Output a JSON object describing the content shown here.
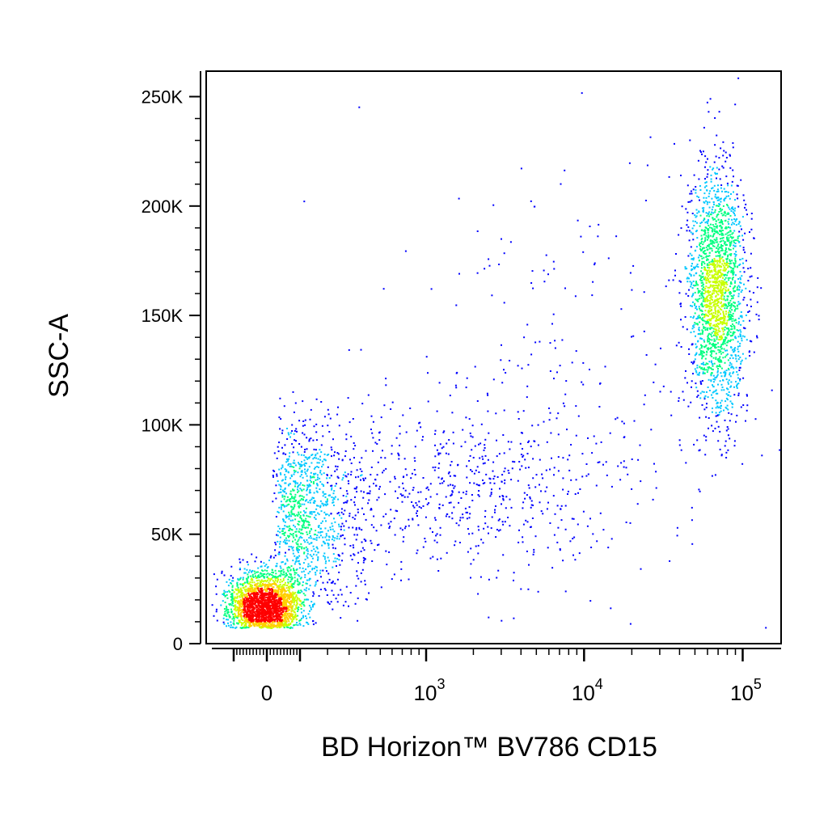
{
  "chart_data": {
    "type": "scatter",
    "style": "pseudocolor-density",
    "title": "",
    "xlabel": "BD Horizon™ BV786 CD15",
    "ylabel": "SSC-A",
    "x_scale": "biexponential",
    "x_ticks": [
      {
        "value": 0,
        "label": "0"
      },
      {
        "value": 1000,
        "label": "10",
        "sup": "3"
      },
      {
        "value": 10000,
        "label": "10",
        "sup": "4"
      },
      {
        "value": 100000,
        "label": "10",
        "sup": "5"
      }
    ],
    "y_ticks": [
      {
        "value": 0,
        "label": "0"
      },
      {
        "value": 50000,
        "label": "50K"
      },
      {
        "value": 100000,
        "label": "100K"
      },
      {
        "value": 150000,
        "label": "150K"
      },
      {
        "value": 200000,
        "label": "200K"
      },
      {
        "value": 250000,
        "label": "250K"
      }
    ],
    "ylim": [
      -5000,
      262144
    ],
    "xlim": [
      -200,
      262144
    ],
    "grid": false,
    "legend": "none",
    "density_colors": [
      "#0000ff",
      "#00c8ff",
      "#00ff80",
      "#c8ff00",
      "#ffd000",
      "#ff0000"
    ],
    "populations": [
      {
        "cx": -10,
        "cy": 17000,
        "sx_decades": 0.0,
        "sx_linear": 55,
        "sy": 8000,
        "count": 2600
      },
      {
        "cx": 130,
        "cy": 60000,
        "sx_decades": 0.32,
        "sy": 20000,
        "count": 1100
      },
      {
        "cx": 2000,
        "cy": 72000,
        "sx_decades": 0.45,
        "sy": 18000,
        "count": 500
      },
      {
        "cx": 68000,
        "cy": 160000,
        "sx_decades": 0.09,
        "sy": 28000,
        "count": 2000
      },
      {
        "cx": 10000,
        "cy": 110000,
        "sx_decades": 0.6,
        "sy": 55000,
        "count": 260
      }
    ]
  }
}
